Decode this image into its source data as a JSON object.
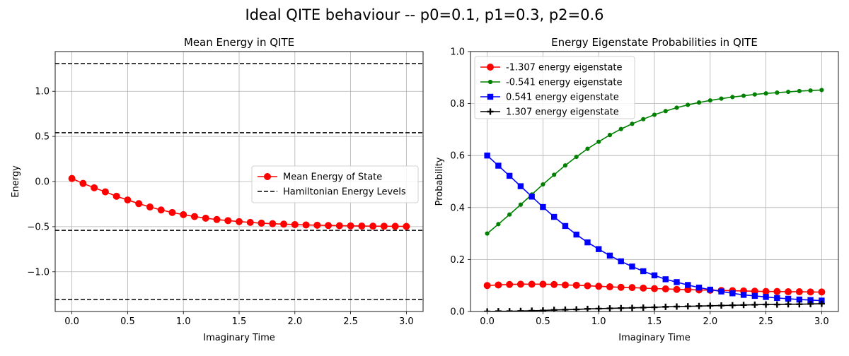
{
  "figure": {
    "suptitle": "Ideal QITE behaviour -- p0=0.1, p1=0.3, p2=0.6"
  },
  "chart_data": [
    {
      "type": "line",
      "title": "Mean Energy in QITE",
      "xlabel": "Imaginary Time",
      "ylabel": "Energy",
      "xlim": [
        -0.15,
        3.15
      ],
      "ylim": [
        -1.44,
        1.44
      ],
      "xticks": [
        0.0,
        0.5,
        1.0,
        1.5,
        2.0,
        2.5,
        3.0
      ],
      "xtick_labels": [
        "0.0",
        "0.5",
        "1.0",
        "1.5",
        "2.0",
        "2.5",
        "3.0"
      ],
      "yticks": [
        -1.0,
        -0.5,
        0.0,
        0.5,
        1.0
      ],
      "ytick_labels": [
        "−1.0",
        "−0.5",
        "0.0",
        "0.5",
        "1.0"
      ],
      "grid": true,
      "legend_position": "center-right",
      "x": [
        0.0,
        0.1,
        0.2,
        0.3,
        0.4,
        0.5,
        0.6,
        0.7,
        0.8,
        0.9,
        1.0,
        1.1,
        1.2,
        1.3,
        1.4,
        1.5,
        1.6,
        1.7,
        1.8,
        1.9,
        2.0,
        2.1,
        2.2,
        2.3,
        2.4,
        2.5,
        2.6,
        2.7,
        2.8,
        2.9,
        3.0
      ],
      "series": [
        {
          "name": "Mean Energy of State",
          "color": "#ff0000",
          "marker": "circle",
          "values": [
            0.034,
            -0.021,
            -0.069,
            -0.114,
            -0.163,
            -0.204,
            -0.245,
            -0.282,
            -0.315,
            -0.343,
            -0.367,
            -0.388,
            -0.406,
            -0.421,
            -0.433,
            -0.444,
            -0.453,
            -0.461,
            -0.467,
            -0.472,
            -0.477,
            -0.481,
            -0.484,
            -0.487,
            -0.489,
            -0.491,
            -0.493,
            -0.494,
            -0.495,
            -0.496,
            -0.497
          ]
        }
      ],
      "hlines": {
        "name": "Hamiltonian Energy Levels",
        "color": "#000000",
        "style": "dashed",
        "values": [
          -1.307,
          -0.541,
          0.541,
          1.307
        ]
      }
    },
    {
      "type": "line",
      "title": "Energy Eigenstate Probabilities in QITE",
      "xlabel": "Imaginary Time",
      "ylabel": "Probability",
      "xlim": [
        -0.15,
        3.15
      ],
      "ylim": [
        0.0,
        1.0
      ],
      "xticks": [
        0.0,
        0.5,
        1.0,
        1.5,
        2.0,
        2.5,
        3.0
      ],
      "xtick_labels": [
        "0.0",
        "0.5",
        "1.0",
        "1.5",
        "2.0",
        "2.5",
        "3.0"
      ],
      "yticks": [
        0.0,
        0.2,
        0.4,
        0.6,
        0.8,
        1.0
      ],
      "ytick_labels": [
        "0.0",
        "0.2",
        "0.4",
        "0.6",
        "0.8",
        "1.0"
      ],
      "grid": true,
      "legend_position": "upper-left",
      "x": [
        0.0,
        0.1,
        0.2,
        0.3,
        0.4,
        0.5,
        0.6,
        0.7,
        0.8,
        0.9,
        1.0,
        1.1,
        1.2,
        1.3,
        1.4,
        1.5,
        1.6,
        1.7,
        1.8,
        1.9,
        2.0,
        2.1,
        2.2,
        2.3,
        2.4,
        2.5,
        2.6,
        2.7,
        2.8,
        2.9,
        3.0
      ],
      "series": [
        {
          "name": "-1.307 energy eigenstate",
          "color": "#ff0000",
          "marker": "circle",
          "values": [
            0.1,
            0.102,
            0.104,
            0.105,
            0.105,
            0.105,
            0.104,
            0.102,
            0.101,
            0.099,
            0.097,
            0.095,
            0.093,
            0.092,
            0.09,
            0.088,
            0.087,
            0.085,
            0.084,
            0.083,
            0.082,
            0.081,
            0.08,
            0.079,
            0.078,
            0.077,
            0.077,
            0.076,
            0.076,
            0.075,
            0.075
          ]
        },
        {
          "name": "-0.541 energy eigenstate",
          "color": "#008000",
          "marker": "point",
          "values": [
            0.3,
            0.336,
            0.373,
            0.411,
            0.45,
            0.489,
            0.526,
            0.562,
            0.595,
            0.626,
            0.653,
            0.679,
            0.702,
            0.722,
            0.74,
            0.757,
            0.771,
            0.784,
            0.795,
            0.804,
            0.812,
            0.819,
            0.825,
            0.83,
            0.835,
            0.839,
            0.842,
            0.845,
            0.848,
            0.85,
            0.852
          ]
        },
        {
          "name": "0.541 energy eigenstate",
          "color": "#0000ff",
          "marker": "square",
          "values": [
            0.6,
            0.561,
            0.522,
            0.482,
            0.442,
            0.402,
            0.364,
            0.329,
            0.296,
            0.266,
            0.24,
            0.215,
            0.193,
            0.173,
            0.155,
            0.139,
            0.124,
            0.113,
            0.102,
            0.092,
            0.084,
            0.077,
            0.07,
            0.064,
            0.06,
            0.056,
            0.052,
            0.049,
            0.046,
            0.044,
            0.042
          ]
        },
        {
          "name": "1.307 energy eigenstate",
          "color": "#000000",
          "marker": "plus",
          "values": [
            0.0,
            0.001,
            0.001,
            0.002,
            0.003,
            0.004,
            0.006,
            0.007,
            0.008,
            0.01,
            0.011,
            0.012,
            0.013,
            0.014,
            0.015,
            0.016,
            0.018,
            0.019,
            0.02,
            0.021,
            0.022,
            0.023,
            0.024,
            0.025,
            0.026,
            0.027,
            0.027,
            0.028,
            0.028,
            0.029,
            0.03
          ]
        }
      ]
    }
  ]
}
